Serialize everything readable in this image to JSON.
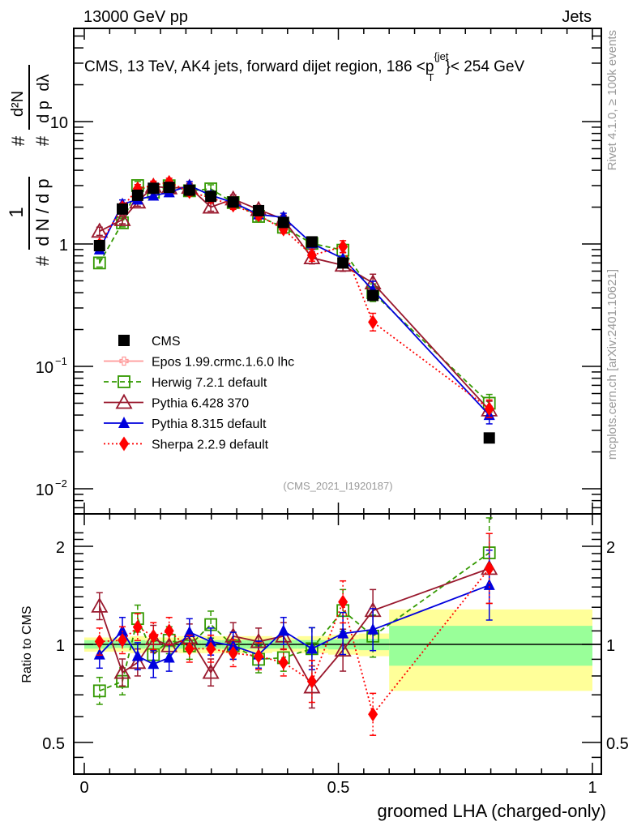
{
  "header": {
    "left": "13000 GeV pp",
    "right": "Jets"
  },
  "side_texts": {
    "rivet": "Rivet 4.1.0, ≥ 100k events",
    "mcplots": "mcplots.cern.ch [arXiv:2401.10621]"
  },
  "chart_data": [
    {
      "type": "line",
      "panel": "main",
      "title": "CMS, 13 TeV, AK4 jets, forward dijet region, 186 <p_T^{jet}< 254 GeV",
      "title_parts": {
        "pre": "CMS, 13 TeV, AK4 jets, forward dijet region, 186 <p",
        "sup": "{jet",
        "sub": "T",
        "post": "}< 254 GeV"
      },
      "analysis_id": "(CMS_2021_I1920187)",
      "ylabel": "1/dN/dp_T # d²N/(dp_T # dλ)",
      "ylabel_parts": {
        "num1": "1",
        "den1": "d N / d p",
        "hash": "#",
        "num2": "d²N",
        "den2": "d p",
        "sub": "T",
        "dl": "dλ"
      },
      "yscale": "log",
      "ylim": [
        0.006,
        70
      ],
      "yticks": [
        {
          "v": 0.01,
          "base": "10",
          "exp": "−2"
        },
        {
          "v": 0.1,
          "base": "10",
          "exp": "−1"
        },
        {
          "v": 1,
          "base": "1",
          "exp": ""
        },
        {
          "v": 10,
          "base": "10",
          "exp": ""
        }
      ],
      "xlim": [
        -0.02,
        1.02
      ],
      "x": [
        0.03,
        0.075,
        0.105,
        0.136,
        0.167,
        0.207,
        0.249,
        0.293,
        0.343,
        0.392,
        0.448,
        0.509,
        0.568,
        0.797
      ],
      "legend_position": "lower-left",
      "series": [
        {
          "name": "CMS",
          "color": "#000000",
          "marker": "square-filled",
          "line": "none",
          "values": [
            0.97,
            1.93,
            2.5,
            2.85,
            2.9,
            2.75,
            2.45,
            2.2,
            1.87,
            1.5,
            1.04,
            0.7,
            0.38,
            0.026
          ]
        },
        {
          "name": "Epos 1.99.crmc.1.6.0 lhc",
          "color": "#ff9999",
          "marker": "cross-open",
          "line": "solid",
          "values": []
        },
        {
          "name": "Herwig 7.2.1 default",
          "color": "#339900",
          "marker": "square-open",
          "line": "dashed",
          "values": [
            0.7,
            1.49,
            3.0,
            2.65,
            2.99,
            2.72,
            2.82,
            2.18,
            1.68,
            1.37,
            1.01,
            0.89,
            0.4,
            0.05
          ]
        },
        {
          "name": "Pythia 6.428 370",
          "color": "#99182d",
          "marker": "triangle-open",
          "line": "solid",
          "values": [
            1.27,
            1.58,
            2.2,
            2.96,
            2.87,
            2.9,
            2.0,
            2.33,
            1.91,
            1.59,
            0.77,
            0.67,
            0.48,
            0.044
          ]
        },
        {
          "name": "Pythia 8.315 default",
          "color": "#0000dd",
          "marker": "triangle-filled",
          "line": "solid",
          "values": [
            0.9,
            2.12,
            2.3,
            2.48,
            2.64,
            3.0,
            2.5,
            2.18,
            1.74,
            1.65,
            1.01,
            0.76,
            0.42,
            0.04
          ]
        },
        {
          "name": "Sherpa 2.2.9 default",
          "color": "#ff0000",
          "marker": "diamond-filled",
          "line": "dotted",
          "values": [
            0.99,
            1.99,
            2.83,
            3.02,
            3.19,
            2.67,
            2.38,
            2.07,
            1.72,
            1.32,
            0.81,
            0.95,
            0.23,
            0.045
          ]
        }
      ]
    },
    {
      "type": "line",
      "panel": "ratio",
      "ylabel": "Ratio to CMS",
      "xlabel": "groomed LHA (charged-only)",
      "yscale": "log",
      "ylim": [
        0.42,
        2.3
      ],
      "yticks": [
        0.5,
        1,
        2
      ],
      "ytick_labels": [
        "0.5",
        "1",
        "2"
      ],
      "xlim": [
        -0.02,
        1.02
      ],
      "xticks": [
        0,
        0.5,
        1
      ],
      "xtick_labels": [
        "0",
        "0.5",
        "1"
      ],
      "x": [
        0.03,
        0.075,
        0.105,
        0.136,
        0.167,
        0.207,
        0.249,
        0.293,
        0.343,
        0.392,
        0.448,
        0.509,
        0.568,
        0.797
      ],
      "uncertainty_band": {
        "bin_edges": [
          0.0,
          0.055,
          0.09,
          0.12,
          0.15,
          0.185,
          0.23,
          0.27,
          0.32,
          0.37,
          0.42,
          0.48,
          0.54,
          0.6,
          1.0
        ],
        "inner": [
          0.03,
          0.025,
          0.03,
          0.025,
          0.025,
          0.03,
          0.03,
          0.03,
          0.03,
          0.03,
          0.03,
          0.035,
          0.04,
          0.14
        ],
        "outer": [
          0.05,
          0.05,
          0.06,
          0.05,
          0.05,
          0.06,
          0.06,
          0.06,
          0.06,
          0.05,
          0.06,
          0.07,
          0.08,
          0.28
        ],
        "inner_color": "#99ff99",
        "outer_color": "#ffff99"
      },
      "series": [
        {
          "name": "Herwig 7.2.1 default",
          "color": "#339900",
          "marker": "square-open",
          "line": "dashed",
          "values": [
            0.72,
            0.77,
            1.2,
            0.93,
            1.03,
            0.99,
            1.15,
            0.99,
            0.9,
            0.91,
            0.97,
            1.27,
            1.06,
            1.91
          ]
        },
        {
          "name": "Pythia 6.428 370",
          "color": "#99182d",
          "marker": "triangle-open",
          "line": "solid",
          "values": [
            1.31,
            0.82,
            0.88,
            1.04,
            0.99,
            1.05,
            0.82,
            1.06,
            1.02,
            1.06,
            0.74,
            0.96,
            1.27,
            1.71
          ]
        },
        {
          "name": "Pythia 8.315 default",
          "color": "#0000dd",
          "marker": "triangle-filled",
          "line": "solid",
          "values": [
            0.93,
            1.1,
            0.92,
            0.87,
            0.91,
            1.09,
            1.02,
            0.99,
            0.93,
            1.1,
            0.97,
            1.08,
            1.11,
            1.52
          ]
        },
        {
          "name": "Sherpa 2.2.9 default",
          "color": "#ff0000",
          "marker": "diamond-filled",
          "line": "dotted",
          "values": [
            1.02,
            1.03,
            1.13,
            1.06,
            1.1,
            0.97,
            0.97,
            0.94,
            0.92,
            0.88,
            0.77,
            1.35,
            0.61,
            1.71
          ]
        }
      ]
    }
  ]
}
